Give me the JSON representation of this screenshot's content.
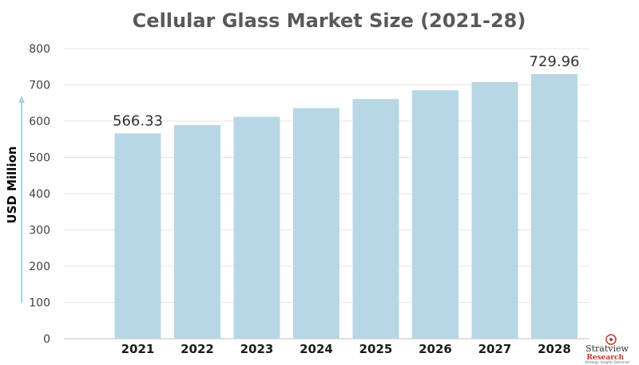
{
  "chart_data": {
    "type": "bar",
    "title": "Cellular Glass Market Size (2021-28)",
    "xlabel": "",
    "ylabel": "USD Million",
    "categories": [
      "2021",
      "2022",
      "2023",
      "2024",
      "2025",
      "2026",
      "2027",
      "2028"
    ],
    "values": [
      566.33,
      589,
      612,
      636,
      661,
      685,
      708,
      729.96
    ],
    "data_labels": {
      "0": "566.33",
      "7": "729.96"
    },
    "ylim": [
      0,
      800
    ],
    "yticks": [
      0,
      100,
      200,
      300,
      400,
      500,
      600,
      700,
      800
    ],
    "ytick_labels": [
      "0",
      "100",
      "200",
      "300",
      "400",
      "500",
      "600",
      "700",
      "800"
    ],
    "grid": true,
    "bar_color": "#b7d7e5",
    "grid_color": "#e6e6e6",
    "axis_arrow_color": "#a8d3e8"
  },
  "logo": {
    "name": "Stratview",
    "sub": "Research",
    "tagline": "Strategic Insights Delivered"
  }
}
